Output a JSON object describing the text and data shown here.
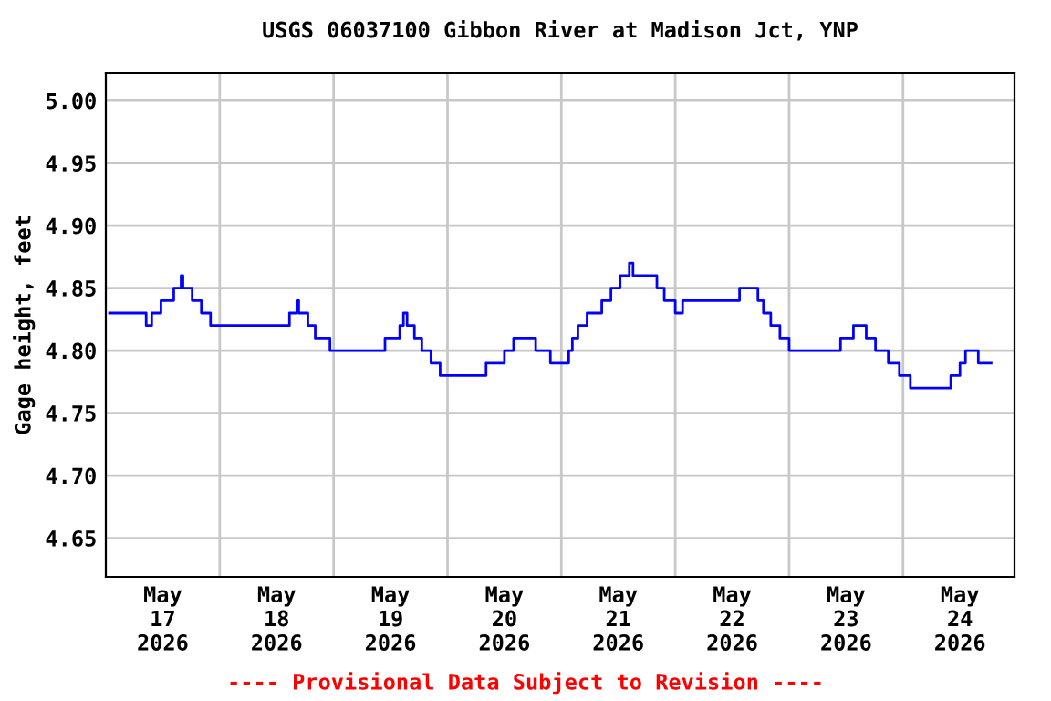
{
  "chart_data": {
    "type": "step",
    "title": "USGS 06037100 Gibbon River at Madison Jct, YNP",
    "ylabel": "Gage height, feet",
    "annotations": [
      "---- Provisional Data Subject to Revision ----"
    ],
    "x": [
      "2026-05-17T00:46",
      "2026-05-17T08:30",
      "2026-05-17T09:40",
      "2026-05-17T11:37",
      "2026-05-17T14:19",
      "2026-05-17T15:52",
      "2026-05-17T16:15",
      "2026-05-17T18:12",
      "2026-05-17T20:08",
      "2026-05-17T22:04",
      "2026-05-18T14:42",
      "2026-05-18T16:15",
      "2026-05-18T16:39",
      "2026-05-18T18:35",
      "2026-05-18T20:08",
      "2026-05-18T23:14",
      "2026-05-19T10:50",
      "2026-05-19T13:56",
      "2026-05-19T14:43",
      "2026-05-19T15:29",
      "2026-05-19T17:02",
      "2026-05-19T18:35",
      "2026-05-19T20:31",
      "2026-05-19T22:27",
      "2026-05-20T00:23",
      "2026-05-20T08:08",
      "2026-05-20T12:00",
      "2026-05-20T13:56",
      "2026-05-20T17:48",
      "2026-05-20T18:35",
      "2026-05-20T21:41",
      "2026-05-21T00:23",
      "2026-05-21T01:33",
      "2026-05-21T02:19",
      "2026-05-21T03:29",
      "2026-05-21T05:25",
      "2026-05-21T08:31",
      "2026-05-21T10:27",
      "2026-05-21T12:23",
      "2026-05-21T14:19",
      "2026-05-21T15:06",
      "2026-05-21T19:21",
      "2026-05-21T20:08",
      "2026-05-21T21:41",
      "2026-05-22T00:00",
      "2026-05-22T01:33",
      "2026-05-22T04:39",
      "2026-05-22T13:10",
      "2026-05-22T13:33",
      "2026-05-22T16:15",
      "2026-05-22T17:25",
      "2026-05-22T18:35",
      "2026-05-22T20:08",
      "2026-05-22T22:04",
      "2026-05-23T00:00",
      "2026-05-23T10:27",
      "2026-05-23T10:50",
      "2026-05-23T13:33",
      "2026-05-23T15:29",
      "2026-05-23T16:15",
      "2026-05-23T18:12",
      "2026-05-23T20:54",
      "2026-05-23T23:14",
      "2026-05-24T01:33",
      "2026-05-24T09:17",
      "2026-05-24T10:04",
      "2026-05-24T12:00",
      "2026-05-24T13:10",
      "2026-05-24T15:06",
      "2026-05-24T15:52",
      "2026-05-24T18:35"
    ],
    "series": [
      {
        "color": "#0000ff",
        "values": [
          4.83,
          4.82,
          4.83,
          4.84,
          4.85,
          4.86,
          4.85,
          4.84,
          4.83,
          4.82,
          4.83,
          4.84,
          4.83,
          4.82,
          4.81,
          4.8,
          4.81,
          4.82,
          4.83,
          4.82,
          4.81,
          4.8,
          4.79,
          4.78,
          4.78,
          4.79,
          4.8,
          4.81,
          4.81,
          4.8,
          4.79,
          4.79,
          4.8,
          4.81,
          4.82,
          4.83,
          4.84,
          4.85,
          4.86,
          4.87,
          4.86,
          4.86,
          4.85,
          4.84,
          4.83,
          4.84,
          4.84,
          4.84,
          4.85,
          4.85,
          4.84,
          4.83,
          4.82,
          4.81,
          4.8,
          4.8,
          4.81,
          4.82,
          4.82,
          4.81,
          4.8,
          4.79,
          4.78,
          4.77,
          4.77,
          4.78,
          4.79,
          4.8,
          4.8,
          4.79,
          4.79
        ]
      }
    ],
    "xlim": [
      "2026-05-17T00:00",
      "2026-05-24T23:30"
    ],
    "xticks": [
      {
        "value": "2026-05-17T12:00",
        "label": "May\n17\n2026"
      },
      {
        "value": "2026-05-18T00:00",
        "label": null
      },
      {
        "value": "2026-05-18T12:00",
        "label": "May\n18\n2026"
      },
      {
        "value": "2026-05-19T00:00",
        "label": null
      },
      {
        "value": "2026-05-19T12:00",
        "label": "May\n19\n2026"
      },
      {
        "value": "2026-05-20T00:00",
        "label": null
      },
      {
        "value": "2026-05-20T12:00",
        "label": "May\n20\n2026"
      },
      {
        "value": "2026-05-21T00:00",
        "label": null
      },
      {
        "value": "2026-05-21T12:00",
        "label": "May\n21\n2026"
      },
      {
        "value": "2026-05-22T00:00",
        "label": null
      },
      {
        "value": "2026-05-22T12:00",
        "label": "May\n22\n2026"
      },
      {
        "value": "2026-05-23T00:00",
        "label": null
      },
      {
        "value": "2026-05-23T12:00",
        "label": "May\n23\n2026"
      },
      {
        "value": "2026-05-24T00:00",
        "label": null
      },
      {
        "value": "2026-05-24T12:00",
        "label": "May\n24\n2026"
      }
    ],
    "ylim": [
      4.619,
      5.022
    ],
    "yticks": [
      {
        "value": 4.65,
        "label": "4.65"
      },
      {
        "value": 4.7,
        "label": "4.70"
      },
      {
        "value": 4.75,
        "label": "4.75"
      },
      {
        "value": 4.8,
        "label": "4.80"
      },
      {
        "value": 4.85,
        "label": "4.85"
      },
      {
        "value": 4.9,
        "label": "4.90"
      },
      {
        "value": 4.95,
        "label": "4.95"
      },
      {
        "value": 5.0,
        "label": "5.00"
      }
    ],
    "grid": true
  }
}
